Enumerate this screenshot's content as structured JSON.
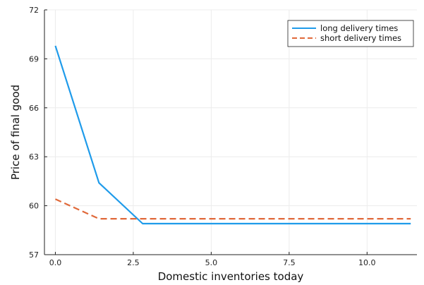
{
  "chart_data": {
    "type": "line",
    "title": "",
    "xlabel": "Domestic inventories today",
    "ylabel": "Price of final good",
    "xlim": [
      -0.35,
      11.6
    ],
    "ylim": [
      57,
      72
    ],
    "xticks": [
      0.0,
      2.5,
      5.0,
      7.5,
      10.0
    ],
    "xtick_labels": [
      "0.0",
      "2.5",
      "5.0",
      "7.5",
      "10.0"
    ],
    "yticks": [
      57,
      60,
      63,
      66,
      69,
      72
    ],
    "ytick_labels": [
      "57",
      "60",
      "63",
      "66",
      "69",
      "72"
    ],
    "grid": true,
    "legend_position": "top-right",
    "series": [
      {
        "name": "long delivery times",
        "color": "#1f9bea",
        "style": "solid",
        "x": [
          0.0,
          1.4,
          2.8,
          11.4
        ],
        "y": [
          69.8,
          61.4,
          58.9,
          58.9
        ]
      },
      {
        "name": "short delivery times",
        "color": "#e0693a",
        "style": "dashed",
        "x": [
          0.0,
          1.4,
          2.8,
          11.4
        ],
        "y": [
          60.4,
          59.2,
          59.2,
          59.2
        ]
      }
    ]
  }
}
